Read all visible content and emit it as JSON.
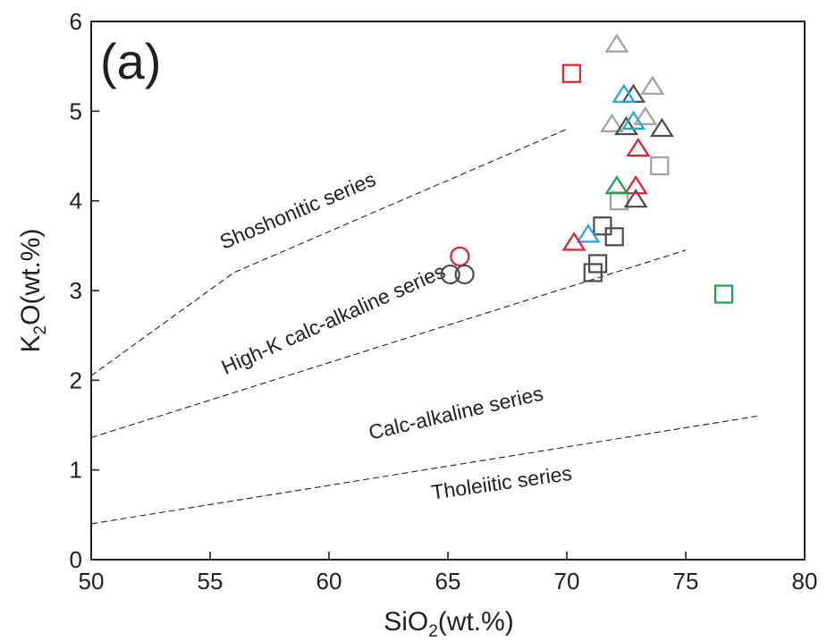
{
  "chart_data": {
    "type": "scatter",
    "panel_label": "(a)",
    "xlabel": {
      "main": "SiO",
      "sub": "2",
      "rest": "(wt.%)"
    },
    "ylabel": {
      "main": "K",
      "sub": "2",
      "rest": "O(wt.%)"
    },
    "xlim": [
      50,
      80
    ],
    "ylim": [
      0,
      6
    ],
    "x_ticks": [
      50,
      55,
      60,
      65,
      70,
      75,
      80
    ],
    "y_ticks": [
      0,
      1,
      2,
      3,
      4,
      5,
      6
    ],
    "grid": false,
    "boundary_lines": [
      {
        "name": "shoshonitic-boundary",
        "points": [
          [
            50,
            2.05
          ],
          [
            56,
            3.2
          ],
          [
            70,
            4.8
          ]
        ]
      },
      {
        "name": "high-k-boundary",
        "points": [
          [
            50,
            1.36
          ],
          [
            75,
            3.45
          ]
        ]
      },
      {
        "name": "calc-alkaline-boundary",
        "points": [
          [
            50,
            0.4
          ],
          [
            78,
            1.6
          ]
        ]
      }
    ],
    "series_labels": [
      {
        "text": "Shoshonitic series",
        "x": 58.8,
        "y": 3.82,
        "angle": -23
      },
      {
        "text": "High-K calc-alkaline series",
        "x": 60.3,
        "y": 2.61,
        "angle": -24
      },
      {
        "text": "Calc-alkaline series",
        "x": 65.4,
        "y": 1.56,
        "angle": -13
      },
      {
        "text": "Tholeiitic series",
        "x": 67.3,
        "y": 0.78,
        "angle": -8
      }
    ],
    "colors": {
      "red": "#e31e2d",
      "blue": "#1ba8e1",
      "green": "#17a14a",
      "gray": "#a0a0a0",
      "dark": "#4a4a4c"
    },
    "points": [
      {
        "x": 65.5,
        "y": 3.38,
        "shape": "circle",
        "color": "red"
      },
      {
        "x": 65.1,
        "y": 3.18,
        "shape": "circle",
        "color": "dark"
      },
      {
        "x": 65.7,
        "y": 3.18,
        "shape": "circle",
        "color": "dark"
      },
      {
        "x": 70.2,
        "y": 5.42,
        "shape": "square",
        "color": "red"
      },
      {
        "x": 71.5,
        "y": 3.72,
        "shape": "square",
        "color": "dark"
      },
      {
        "x": 72.0,
        "y": 3.6,
        "shape": "square",
        "color": "dark"
      },
      {
        "x": 71.3,
        "y": 3.3,
        "shape": "square",
        "color": "dark"
      },
      {
        "x": 71.1,
        "y": 3.2,
        "shape": "square",
        "color": "dark"
      },
      {
        "x": 72.2,
        "y": 4.0,
        "shape": "square",
        "color": "gray"
      },
      {
        "x": 73.9,
        "y": 4.39,
        "shape": "square",
        "color": "gray"
      },
      {
        "x": 76.6,
        "y": 2.96,
        "shape": "square",
        "color": "green"
      },
      {
        "x": 72.1,
        "y": 5.74,
        "shape": "triangle",
        "color": "gray"
      },
      {
        "x": 73.6,
        "y": 5.27,
        "shape": "triangle",
        "color": "gray"
      },
      {
        "x": 73.3,
        "y": 4.93,
        "shape": "triangle",
        "color": "gray"
      },
      {
        "x": 71.9,
        "y": 4.85,
        "shape": "triangle",
        "color": "gray"
      },
      {
        "x": 72.8,
        "y": 5.18,
        "shape": "triangle",
        "color": "dark"
      },
      {
        "x": 72.5,
        "y": 4.82,
        "shape": "triangle",
        "color": "dark"
      },
      {
        "x": 74.0,
        "y": 4.8,
        "shape": "triangle",
        "color": "dark"
      },
      {
        "x": 72.9,
        "y": 4.01,
        "shape": "triangle",
        "color": "dark"
      },
      {
        "x": 72.4,
        "y": 5.18,
        "shape": "triangle",
        "color": "blue"
      },
      {
        "x": 72.8,
        "y": 4.88,
        "shape": "triangle",
        "color": "blue"
      },
      {
        "x": 70.9,
        "y": 3.62,
        "shape": "triangle",
        "color": "blue"
      },
      {
        "x": 73.0,
        "y": 4.58,
        "shape": "triangle",
        "color": "red"
      },
      {
        "x": 72.9,
        "y": 4.16,
        "shape": "triangle",
        "color": "red"
      },
      {
        "x": 70.3,
        "y": 3.53,
        "shape": "triangle",
        "color": "red"
      },
      {
        "x": 72.1,
        "y": 4.16,
        "shape": "triangle",
        "color": "green"
      }
    ]
  }
}
